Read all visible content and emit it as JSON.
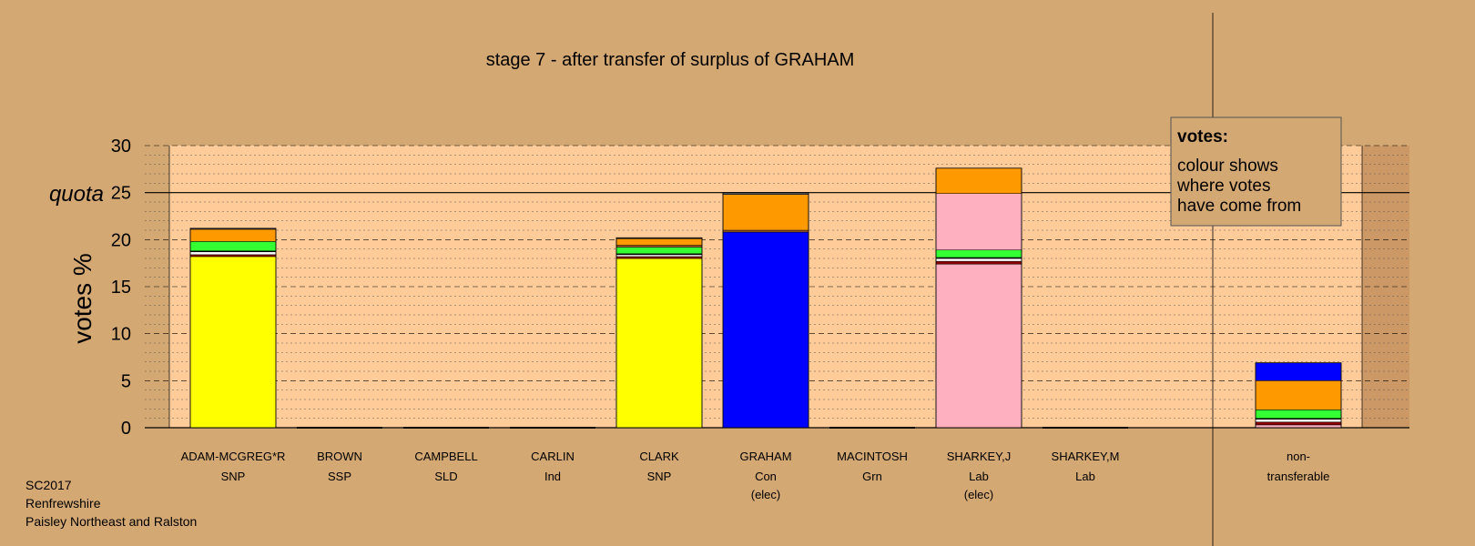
{
  "chart_data": {
    "type": "bar",
    "stacked": true,
    "title": "stage 7 - after transfer of surplus of GRAHAM",
    "ylabel": "votes %",
    "quota_label": "quota",
    "quota": 25,
    "ylim": [
      0,
      30
    ],
    "yticks": [
      0,
      5,
      10,
      15,
      20,
      25,
      30
    ],
    "grid": true,
    "legend": {
      "title": "votes:",
      "lines": [
        "colour shows",
        "where votes",
        "have come from"
      ],
      "position": "top-right"
    },
    "categories": [
      {
        "name": "ADAM-MCGREG*R",
        "party": "SNP",
        "note": ""
      },
      {
        "name": "BROWN",
        "party": "SSP",
        "note": ""
      },
      {
        "name": "CAMPBELL",
        "party": "SLD",
        "note": ""
      },
      {
        "name": "CARLIN",
        "party": "Ind",
        "note": ""
      },
      {
        "name": "CLARK",
        "party": "SNP",
        "note": ""
      },
      {
        "name": "GRAHAM",
        "party": "Con",
        "note": "(elec)"
      },
      {
        "name": "MACINTOSH",
        "party": "Grn",
        "note": ""
      },
      {
        "name": "SHARKEY,J",
        "party": "Lab",
        "note": "(elec)"
      },
      {
        "name": "SHARKEY,M",
        "party": "Lab",
        "note": ""
      },
      {
        "name": "",
        "party": "",
        "note": ""
      },
      {
        "name": "non-",
        "party": "transferable",
        "note": ""
      }
    ],
    "series": [
      {
        "color": "#ffff00",
        "values": [
          18.2,
          0,
          0,
          0,
          18.0,
          0,
          0,
          0,
          0,
          0,
          0
        ]
      },
      {
        "color": "#0000ff",
        "values": [
          0,
          0,
          0,
          0,
          0,
          20.8,
          0,
          0,
          0,
          0,
          0
        ]
      },
      {
        "color": "#ffb0c0",
        "values": [
          0,
          0,
          0,
          0,
          0,
          0,
          0,
          17.4,
          0,
          0,
          0.3
        ]
      },
      {
        "color": "#8b0000",
        "values": [
          0.2,
          0,
          0,
          0,
          0.2,
          0,
          0,
          0.3,
          0,
          0,
          0.3
        ]
      },
      {
        "color": "#ffffff",
        "values": [
          0.3,
          0,
          0,
          0,
          0.2,
          0,
          0,
          0.3,
          0,
          0,
          0.3
        ]
      },
      {
        "color": "#000000",
        "values": [
          0.1,
          0,
          0,
          0,
          0.1,
          0,
          0,
          0.1,
          0,
          0,
          0.1
        ]
      },
      {
        "color": "#33ff33",
        "values": [
          1.0,
          0,
          0,
          0,
          0.7,
          0,
          0,
          0.8,
          0,
          0,
          0.9
        ]
      },
      {
        "color": "#a05a2c",
        "values": [
          0,
          0,
          0,
          0,
          0.2,
          0.2,
          0,
          0,
          0,
          0,
          0
        ]
      },
      {
        "color": "#ffb0c0",
        "values": [
          0,
          0,
          0,
          0,
          0,
          0,
          0,
          6.0,
          0,
          0,
          0
        ]
      },
      {
        "color": "#ff9900",
        "values": [
          1.3,
          0,
          0,
          0,
          0.7,
          3.8,
          0,
          2.7,
          0,
          0,
          3.1
        ]
      },
      {
        "color": "#555555",
        "values": [
          0.1,
          0,
          0,
          0,
          0.1,
          0.2,
          0,
          0,
          0,
          0,
          0
        ]
      },
      {
        "color": "#0000ff",
        "values": [
          0,
          0,
          0,
          0,
          0,
          0,
          0,
          0,
          0,
          0,
          1.9
        ]
      }
    ]
  },
  "footer": {
    "line1": "SC2017",
    "line2": "Renfrewshire",
    "line3": "Paisley Northeast and Ralston"
  },
  "colors": {
    "background": "#d4a873",
    "plot_area": "#ffcc99",
    "nontransferable_area": "#cc9966"
  }
}
